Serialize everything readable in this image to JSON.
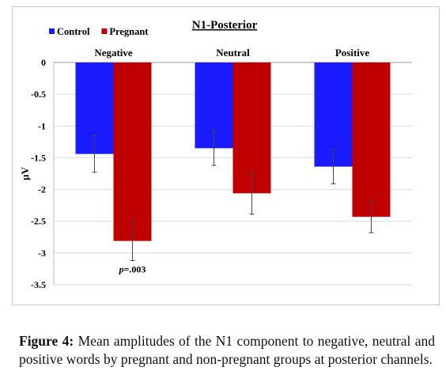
{
  "caption": {
    "label": "Figure 4:",
    "text": "Mean amplitudes of the N1 component to negative, neutral and positive words by pregnant and non-pregnant groups at posterior channels."
  },
  "chart_data": {
    "type": "bar",
    "title": "N1-Posterior",
    "ylabel": "µV",
    "xlabel": "",
    "ylim": [
      -3.5,
      0
    ],
    "yticks": [
      "0",
      "-0.5",
      "-1",
      "-1.5",
      "-2",
      "-2.5",
      "-3",
      "-3.5"
    ],
    "ytick_values": [
      0,
      -0.5,
      -1,
      -1.5,
      -2,
      -2.5,
      -3,
      -3.5
    ],
    "grid": true,
    "legend_position": "top-left",
    "categories": [
      "Negative",
      "Neutral",
      "Positive"
    ],
    "series": [
      {
        "name": "Control",
        "color": "#1a1aff",
        "values": [
          -1.44,
          -1.35,
          -1.64
        ],
        "error": [
          0.29,
          0.27,
          0.27
        ]
      },
      {
        "name": "Pregnant",
        "color": "#c00000",
        "values": [
          -2.81,
          -2.06,
          -2.43
        ],
        "error": [
          0.31,
          0.33,
          0.25
        ]
      }
    ],
    "annotations": [
      {
        "text": "p=.003",
        "category": "Negative",
        "series": "Pregnant"
      }
    ]
  }
}
